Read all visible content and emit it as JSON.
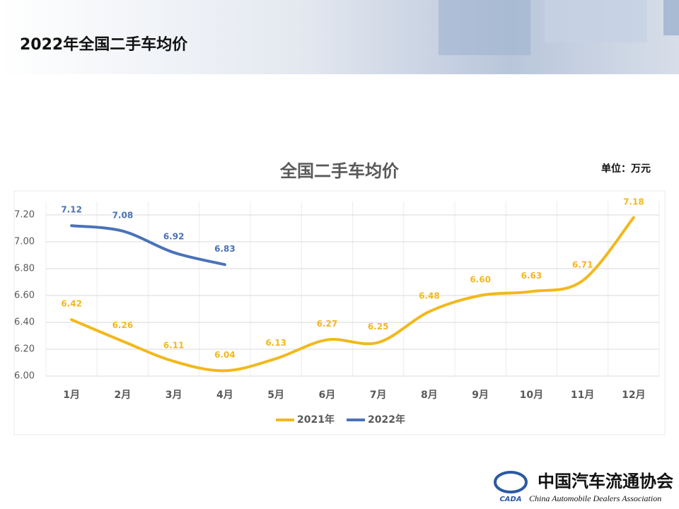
{
  "header": {
    "title": "2022年全国二手车均价"
  },
  "chart_data": {
    "type": "line",
    "title": "全国二手车均价",
    "unit": "单位：万元",
    "categories": [
      "1月",
      "2月",
      "3月",
      "4月",
      "5月",
      "6月",
      "7月",
      "8月",
      "9月",
      "10月",
      "11月",
      "12月"
    ],
    "series": [
      {
        "name": "2021年",
        "color": "#f2b81c",
        "values": [
          6.42,
          6.26,
          6.11,
          6.04,
          6.13,
          6.27,
          6.25,
          6.48,
          6.6,
          6.63,
          6.71,
          7.18
        ],
        "value_labels": [
          "6.42",
          "6.26",
          "6.11",
          "6.04",
          "6.13",
          "6.27",
          "6.25",
          "6.48",
          "6.60",
          "6.63",
          "6.71",
          "7.18"
        ]
      },
      {
        "name": "2022年",
        "color": "#4a72b8",
        "values": [
          7.12,
          7.08,
          6.92,
          6.83,
          null,
          null,
          null,
          null,
          null,
          null,
          null,
          null
        ],
        "value_labels": [
          "7.12",
          "7.08",
          "6.92",
          "6.83",
          null,
          null,
          null,
          null,
          null,
          null,
          null,
          null
        ]
      }
    ],
    "ylim": [
      6.0,
      7.3
    ],
    "yticks": [
      {
        "value": 6.0,
        "label": "6.00"
      },
      {
        "value": 6.2,
        "label": "6.20"
      },
      {
        "value": 6.4,
        "label": "6.40"
      },
      {
        "value": 6.6,
        "label": "6.60"
      },
      {
        "value": 6.8,
        "label": "6.80"
      },
      {
        "value": 7.0,
        "label": "7.00"
      },
      {
        "value": 7.2,
        "label": "7.20"
      }
    ],
    "grid": true,
    "legend": "bottom"
  },
  "footer": {
    "name": "中国汽车流通协会",
    "english": "China Automobile Dealers Association",
    "logo": "CADA"
  }
}
